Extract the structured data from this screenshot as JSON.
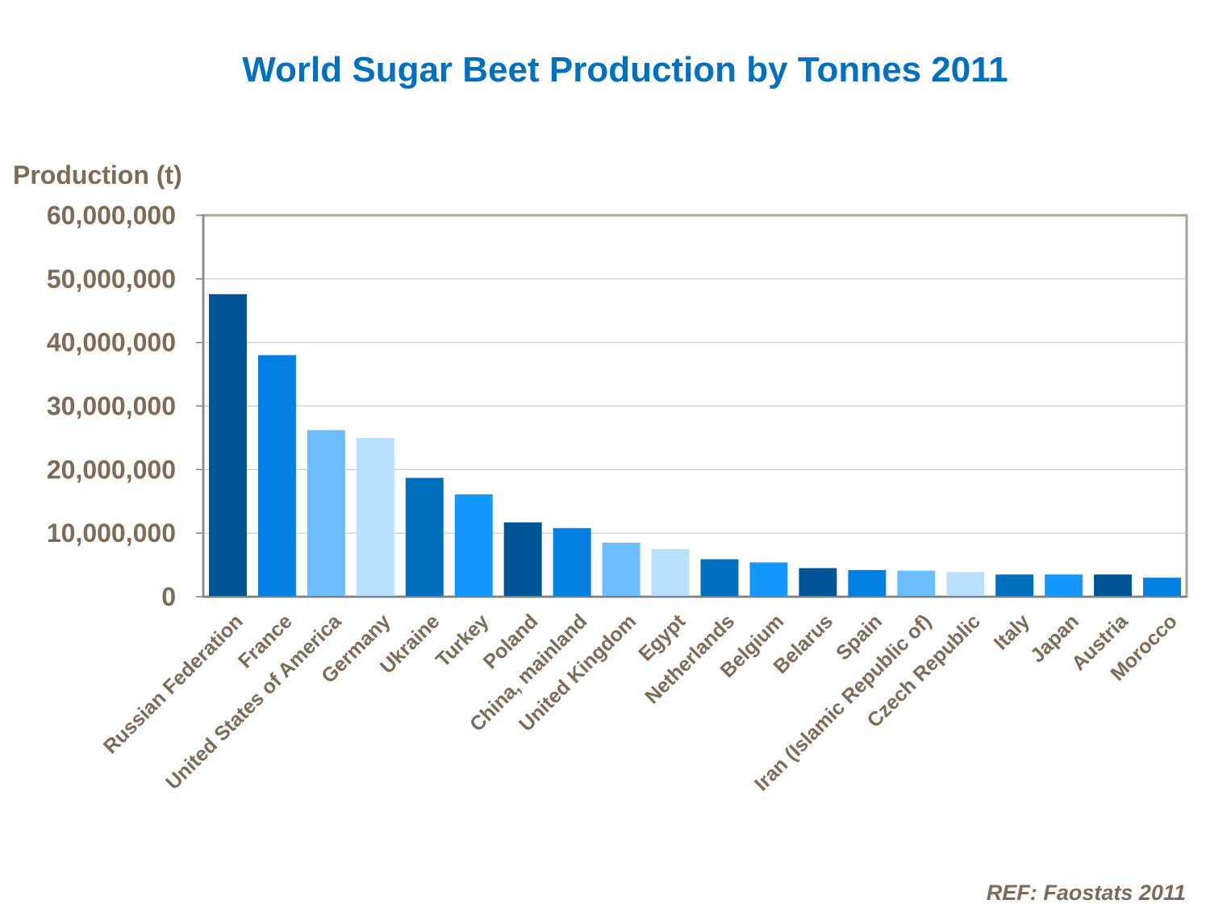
{
  "chart_data": {
    "type": "bar",
    "title": "World Sugar Beet Production by Tonnes 2011",
    "ylabel": "Production (t)",
    "xlabel": "",
    "ylim": [
      0,
      60000000
    ],
    "yticks": [
      0,
      10000000,
      20000000,
      30000000,
      40000000,
      50000000,
      60000000
    ],
    "ytick_labels": [
      "0",
      "10,000,000",
      "20,000,000",
      "30,000,000",
      "40,000,000",
      "50,000,000",
      "60,000,000"
    ],
    "grid": true,
    "categories": [
      "Russian Federation",
      "France",
      "United States of America",
      "Germany",
      "Ukraine",
      "Turkey",
      "Poland",
      "China, mainland",
      "United Kingdom",
      "Egypt",
      "Netherlands",
      "Belgium",
      "Belarus",
      "Spain",
      "Iran (Islamic Republic of)",
      "Czech Republic",
      "Italy",
      "Japan",
      "Austria",
      "Morocco"
    ],
    "values": [
      47600000,
      38000000,
      26200000,
      25000000,
      18700000,
      16100000,
      11700000,
      10800000,
      8500000,
      7500000,
      5900000,
      5400000,
      4500000,
      4200000,
      4100000,
      3900000,
      3500000,
      3500000,
      3500000,
      3000000
    ],
    "colors": [
      "#005596",
      "#0081e3",
      "#6bbdfd",
      "#b9dffe",
      "#006fbe",
      "#1396fe",
      "#005596",
      "#0081e3",
      "#6bbdfd",
      "#b9dffe",
      "#006fbe",
      "#1396fe",
      "#005596",
      "#0081e3",
      "#6bbdfd",
      "#b9dffe",
      "#006fbe",
      "#1396fe",
      "#005596",
      "#0081e3"
    ]
  },
  "footer": {
    "reference": "REF: Faostats 2011"
  },
  "style": {
    "title_color": "#0070c0",
    "label_color": "#7f6a55",
    "frame_color": "#a8a091",
    "grid_color": "#c8c8c8",
    "axis_color": "#7f7f7f"
  }
}
